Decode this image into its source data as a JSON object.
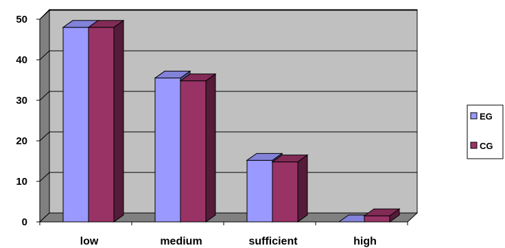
{
  "chart_data": {
    "type": "bar",
    "style": "3d-clustered-column",
    "categories": [
      "low",
      "medium",
      "sufficient",
      "high"
    ],
    "series": [
      {
        "name": "EG",
        "values": [
          48,
          35.5,
          15.2,
          0
        ],
        "color": "#9999ff"
      },
      {
        "name": "CG",
        "values": [
          48,
          34.8,
          14.8,
          1.5
        ],
        "color": "#993366"
      }
    ],
    "yticks": [
      "0",
      "10",
      "20",
      "30",
      "40",
      "50"
    ],
    "ylim": [
      0,
      50
    ],
    "ystep": 10,
    "title": "",
    "xlabel": "",
    "ylabel": "",
    "grid": true,
    "legend": "right",
    "colors": {
      "wall": "#c0c0c0",
      "side_wall": "#808080",
      "floor": "#808080",
      "gridline": "#000000"
    }
  }
}
